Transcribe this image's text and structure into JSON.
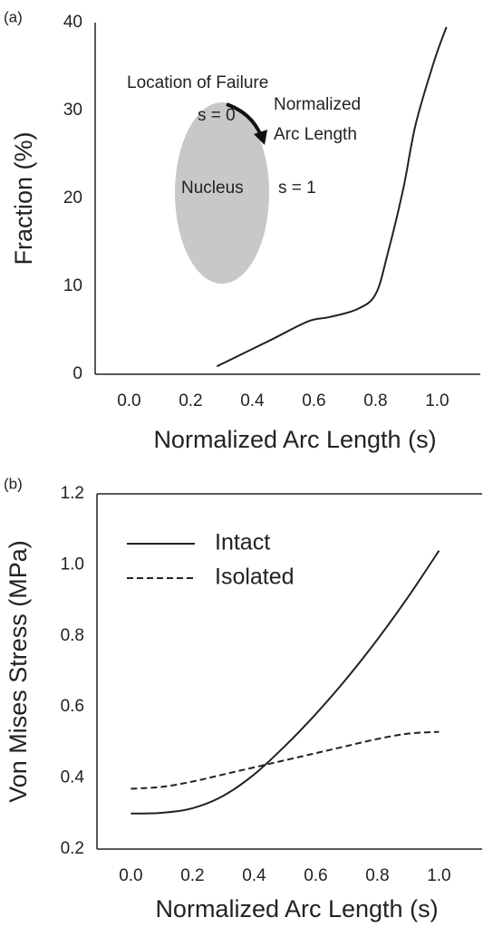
{
  "chart_data": [
    {
      "type": "line",
      "label": "(a)",
      "x_label": "Normalized Arc Length (s)",
      "y_label": "Fraction (%)",
      "x": [
        0.285,
        0.46,
        0.58,
        0.65,
        0.74,
        0.8,
        0.84,
        0.89,
        0.93,
        0.99,
        1.03
      ],
      "values": [
        0.9,
        3.9,
        6.0,
        6.5,
        7.4,
        9.1,
        13.8,
        21.1,
        28.4,
        35.6,
        39.5
      ],
      "color": "#222222",
      "xlim": [
        -0.11,
        1.14
      ],
      "ylim": [
        0,
        40
      ],
      "xticks": [
        {
          "value": 0,
          "label": "0.0"
        },
        0.2,
        0.4,
        0.6,
        0.8,
        {
          "value": 1,
          "label": "1.0"
        }
      ],
      "yticks": [
        0,
        10,
        20,
        30,
        40
      ],
      "annotations": [
        "Location of Failure",
        "s = 0",
        "Normalized",
        "Arc Length",
        "Nucleus",
        "s = 1"
      ]
    },
    {
      "type": "line",
      "label": "(b)",
      "x_label": "Normalized Arc Length (s)",
      "y_label": "Von Mises Stress (MPa)",
      "x": [
        0,
        0.1,
        0.2,
        0.3,
        0.4,
        0.5,
        0.6,
        0.7,
        0.8,
        0.9,
        1.0
      ],
      "series": [
        {
          "name": "Intact",
          "color": "#222222",
          "linestyle": "solid",
          "values": [
            0.3,
            0.302,
            0.315,
            0.35,
            0.41,
            0.49,
            0.58,
            0.68,
            0.79,
            0.91,
            1.04
          ]
        },
        {
          "name": "Isolated",
          "color": "#222222",
          "linestyle": "dashed",
          "values": [
            0.37,
            0.375,
            0.39,
            0.41,
            0.43,
            0.45,
            0.47,
            0.49,
            0.51,
            0.525,
            0.53
          ]
        }
      ],
      "xlim": [
        -0.11,
        1.14
      ],
      "ylim": [
        0.2,
        1.2
      ],
      "xticks": [
        {
          "value": 0,
          "label": "0.0"
        },
        0.2,
        0.4,
        0.6,
        0.8,
        {
          "value": 1,
          "label": "1.0"
        }
      ],
      "yticks": [
        0.2,
        0.4,
        0.6,
        0.8,
        {
          "value": 1,
          "label": "1.0"
        },
        1.2
      ],
      "legend": "upper left"
    }
  ]
}
